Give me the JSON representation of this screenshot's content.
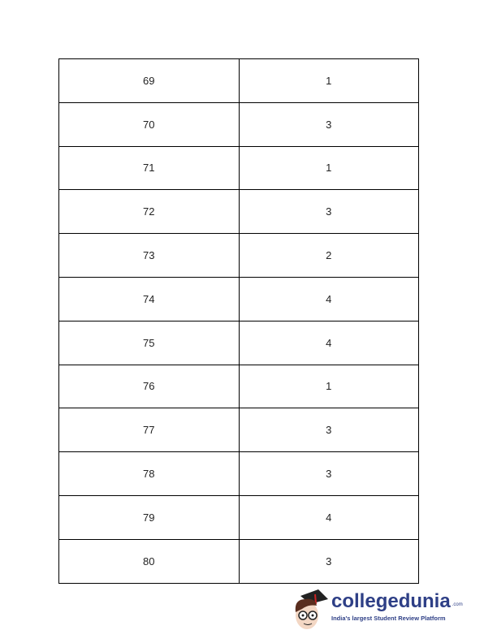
{
  "table": {
    "rows": [
      [
        "69",
        "1"
      ],
      [
        "70",
        "3"
      ],
      [
        "71",
        "1"
      ],
      [
        "72",
        "3"
      ],
      [
        "73",
        "2"
      ],
      [
        "74",
        "4"
      ],
      [
        "75",
        "4"
      ],
      [
        "76",
        "1"
      ],
      [
        "77",
        "3"
      ],
      [
        "78",
        "3"
      ],
      [
        "79",
        "4"
      ],
      [
        "80",
        "3"
      ]
    ]
  },
  "logo": {
    "brand": "collegedunia",
    "domain_suffix": ".com",
    "tagline": "India's largest Student Review Platform",
    "color": "#2e3f86"
  }
}
